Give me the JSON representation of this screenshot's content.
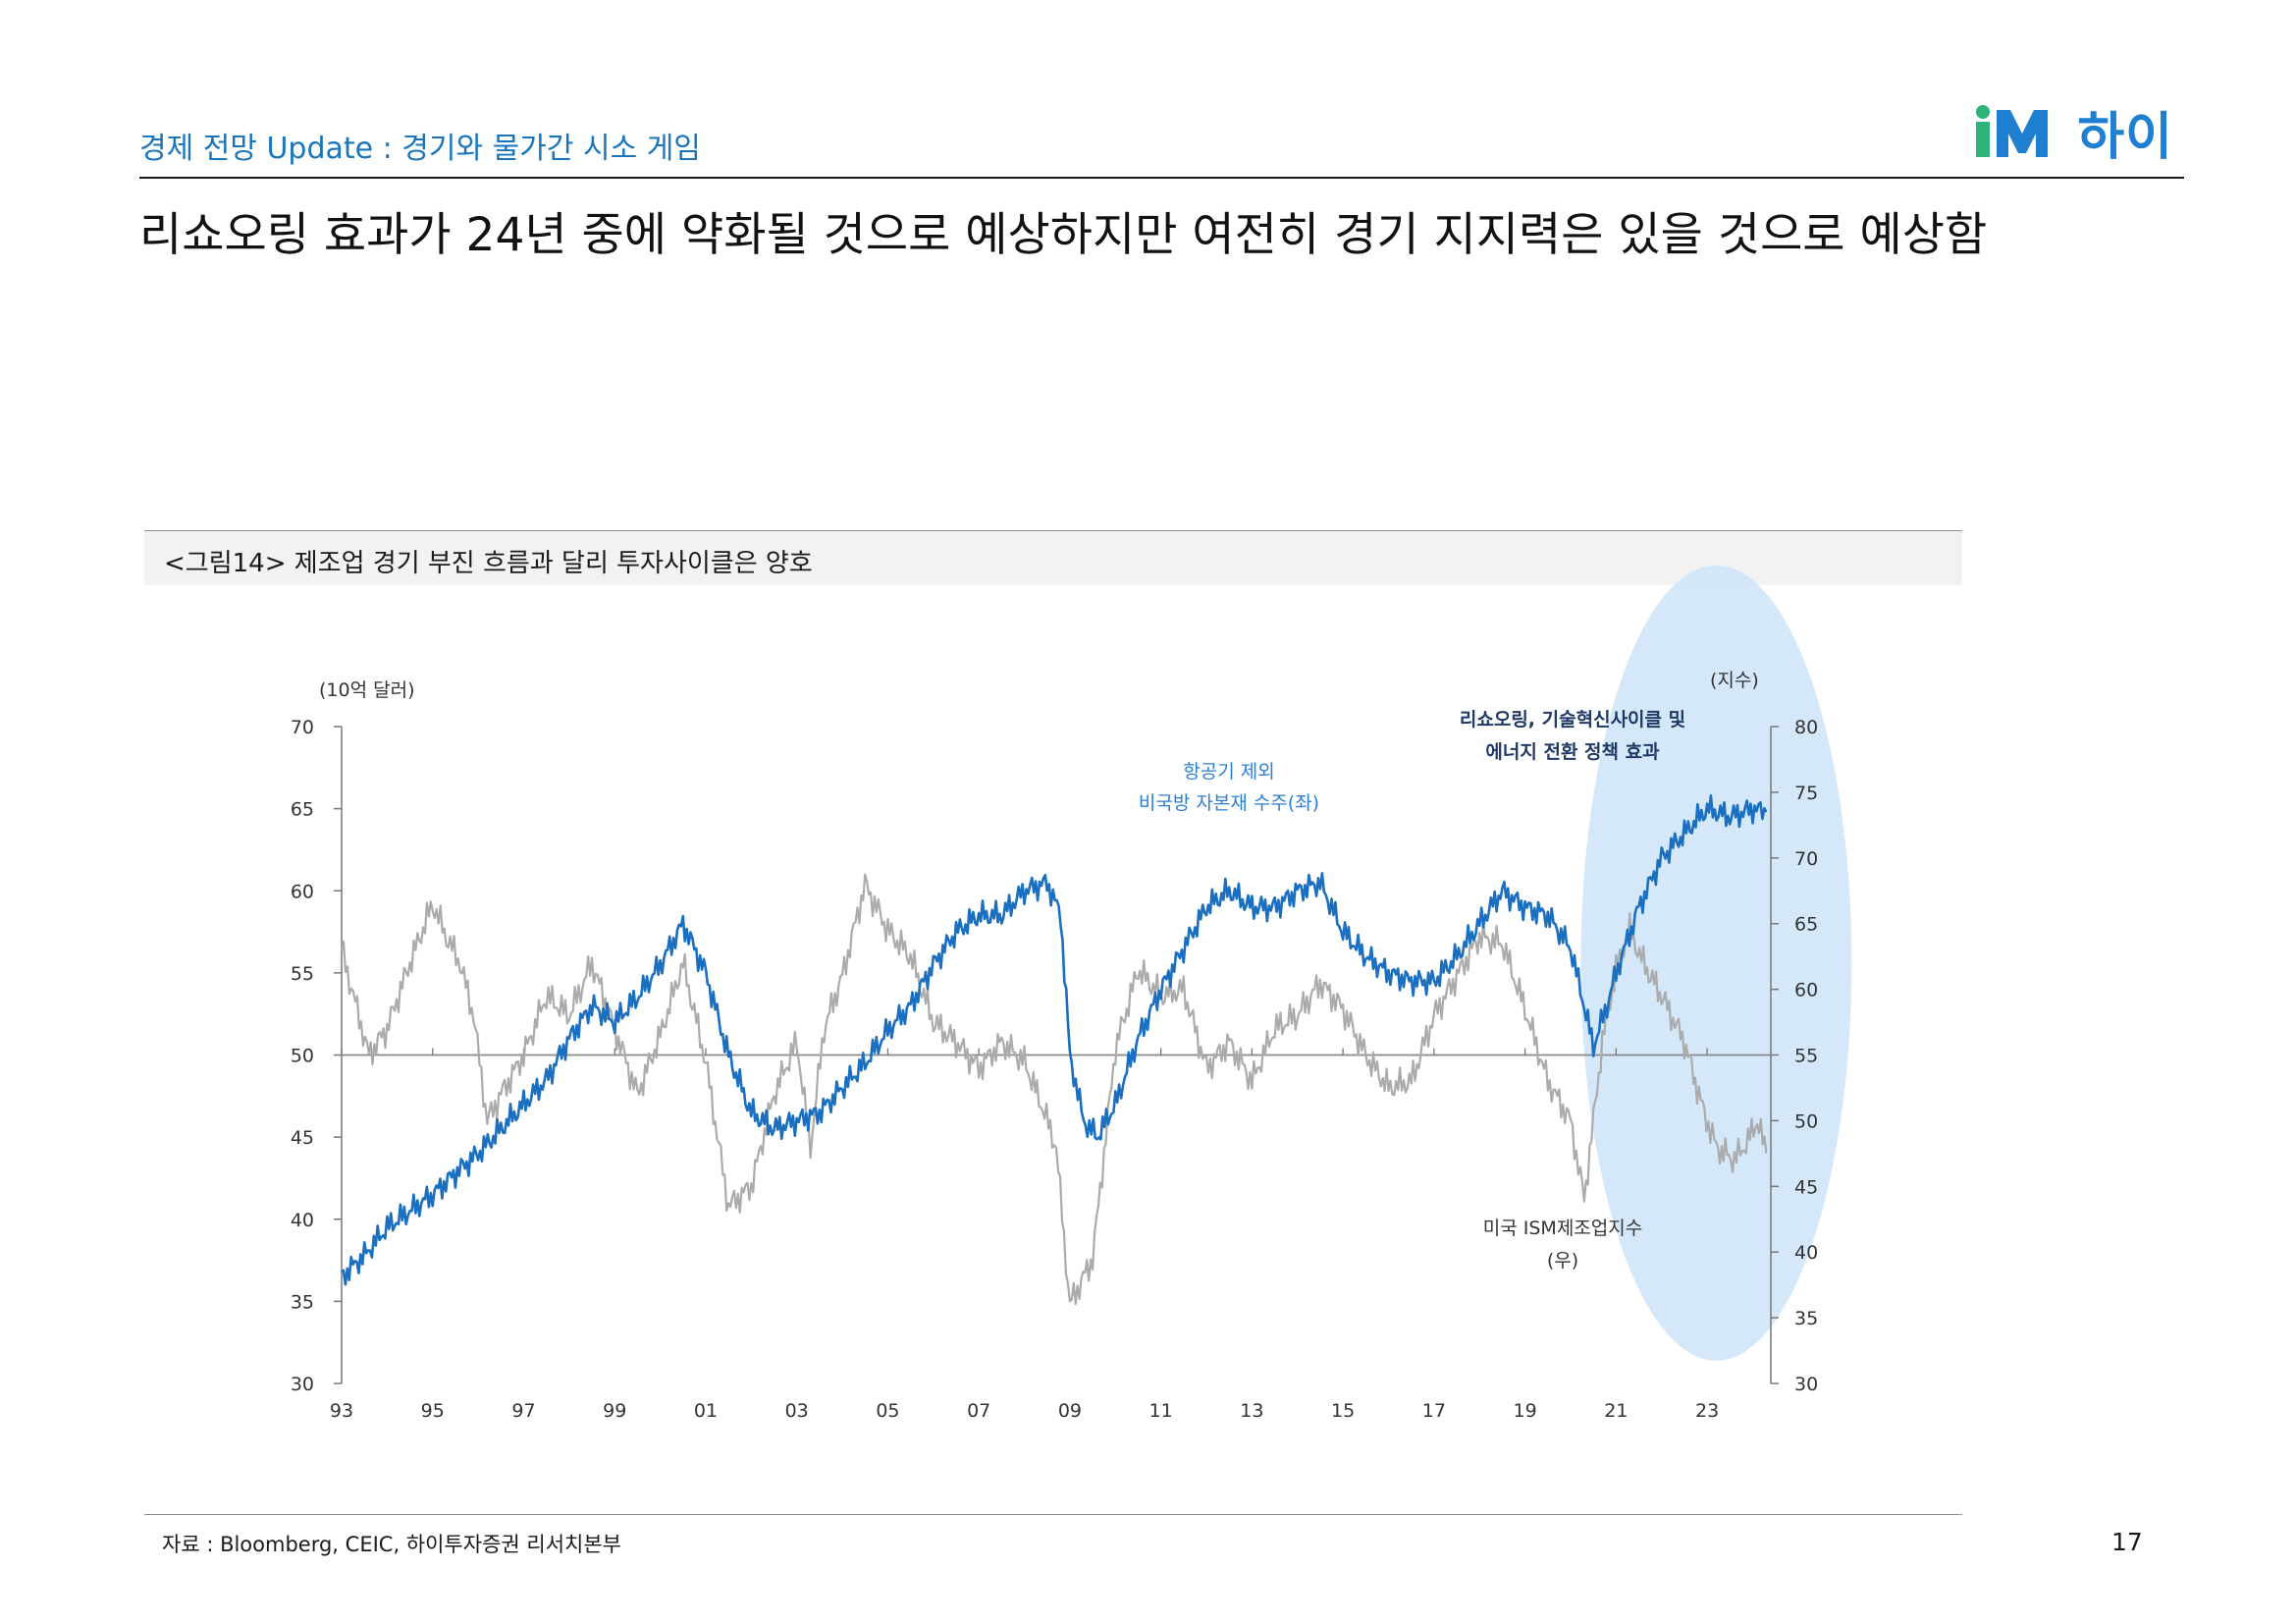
{
  "header": {
    "subtitle": "경제 전망 Update : 경기와 물가간 시소 게임",
    "headline": "리쇼오링 효과가 24년 중에 약화될 것으로 예상하지만 여전히 경기 지지력은 있을 것으로 예상함",
    "logo_text": "하이",
    "logo_brand": "iM"
  },
  "figure": {
    "caption": "<그림14> 제조업 경기 부진 흐름과 달리 투자사이클은 양호",
    "source": "자료 : Bloomberg, CEIC, 하이투자증권 리서치본부"
  },
  "page_number": "17",
  "colors": {
    "blue_series": "#1a6fc0",
    "gray_series": "#ababab",
    "highlight": "#cfe6fa",
    "annotation_dark": "#1f3a66",
    "annotation_blue": "#2f7fcf"
  },
  "chart_data": {
    "type": "line",
    "x_tick_labels": [
      "93",
      "95",
      "97",
      "99",
      "01",
      "03",
      "05",
      "07",
      "09",
      "11",
      "13",
      "15",
      "17",
      "19",
      "21",
      "23"
    ],
    "x_range": [
      1993.0,
      2024.4
    ],
    "left_axis": {
      "unit_label": "(10억 달러)",
      "ylim": [
        30,
        70
      ],
      "ticks": [
        30,
        35,
        40,
        45,
        50,
        55,
        60,
        65,
        70
      ]
    },
    "right_axis": {
      "unit_label": "(지수)",
      "ylim": [
        30,
        80
      ],
      "ticks": [
        30,
        35,
        40,
        45,
        50,
        55,
        60,
        65,
        70,
        75,
        80
      ]
    },
    "reference_line": {
      "axis": "right",
      "value": 55
    },
    "annotations": {
      "blue": [
        "항공기 제외",
        "비국방 자본재 수주(좌)"
      ],
      "gray": [
        "미국 ISM제조업지수",
        "(우)"
      ],
      "highlight": [
        "리쇼오링, 기술혁신사이클 및",
        "에너지 전환 정책 효과"
      ]
    },
    "series": [
      {
        "name": "항공기 제외 비국방 자본재 수주(좌)",
        "axis": "left",
        "color": "#1a6fc0",
        "points": [
          [
            1993.0,
            36.5
          ],
          [
            1993.5,
            37.8
          ],
          [
            1994.0,
            39.5
          ],
          [
            1994.5,
            40.5
          ],
          [
            1995.0,
            41.5
          ],
          [
            1995.5,
            42.8
          ],
          [
            1996.0,
            44.0
          ],
          [
            1996.5,
            45.5
          ],
          [
            1997.0,
            47.0
          ],
          [
            1997.5,
            48.5
          ],
          [
            1998.0,
            51.0
          ],
          [
            1998.5,
            53.0
          ],
          [
            1999.0,
            52.0
          ],
          [
            1999.5,
            53.5
          ],
          [
            2000.0,
            55.5
          ],
          [
            2000.5,
            58.0
          ],
          [
            2001.0,
            55.0
          ],
          [
            2001.5,
            50.0
          ],
          [
            2002.0,
            46.5
          ],
          [
            2002.5,
            45.5
          ],
          [
            2003.0,
            46.0
          ],
          [
            2003.5,
            46.5
          ],
          [
            2004.0,
            48.0
          ],
          [
            2004.5,
            49.5
          ],
          [
            2005.0,
            51.5
          ],
          [
            2005.5,
            53.0
          ],
          [
            2006.0,
            55.5
          ],
          [
            2006.5,
            57.5
          ],
          [
            2007.0,
            58.5
          ],
          [
            2007.5,
            58.5
          ],
          [
            2008.0,
            60.0
          ],
          [
            2008.5,
            60.5
          ],
          [
            2008.8,
            58.5
          ],
          [
            2009.0,
            50.0
          ],
          [
            2009.3,
            46.0
          ],
          [
            2009.6,
            45.0
          ],
          [
            2010.0,
            47.0
          ],
          [
            2010.5,
            51.0
          ],
          [
            2011.0,
            54.0
          ],
          [
            2011.5,
            56.5
          ],
          [
            2012.0,
            59.0
          ],
          [
            2012.5,
            60.0
          ],
          [
            2013.0,
            59.0
          ],
          [
            2013.5,
            59.0
          ],
          [
            2014.0,
            60.0
          ],
          [
            2014.5,
            60.5
          ],
          [
            2015.0,
            57.5
          ],
          [
            2015.5,
            56.0
          ],
          [
            2016.0,
            55.0
          ],
          [
            2016.5,
            54.5
          ],
          [
            2017.0,
            54.5
          ],
          [
            2017.5,
            56.0
          ],
          [
            2018.0,
            58.0
          ],
          [
            2018.5,
            60.0
          ],
          [
            2019.0,
            59.0
          ],
          [
            2019.5,
            58.5
          ],
          [
            2020.0,
            56.5
          ],
          [
            2020.3,
            53.0
          ],
          [
            2020.5,
            50.5
          ],
          [
            2020.8,
            53.0
          ],
          [
            2021.0,
            55.0
          ],
          [
            2021.5,
            59.0
          ],
          [
            2022.0,
            62.0
          ],
          [
            2022.5,
            63.5
          ],
          [
            2023.0,
            65.0
          ],
          [
            2023.5,
            64.5
          ],
          [
            2024.0,
            65.0
          ],
          [
            2024.3,
            64.8
          ]
        ]
      },
      {
        "name": "미국 ISM제조업지수 (우)",
        "axis": "right",
        "color": "#ababab",
        "points": [
          [
            1993.0,
            63.0
          ],
          [
            1993.3,
            59.0
          ],
          [
            1993.6,
            55.0
          ],
          [
            1994.0,
            57.0
          ],
          [
            1994.5,
            62.0
          ],
          [
            1995.0,
            66.5
          ],
          [
            1995.3,
            64.0
          ],
          [
            1995.6,
            62.0
          ],
          [
            1995.9,
            58.0
          ],
          [
            1996.2,
            50.0
          ],
          [
            1996.5,
            52.0
          ],
          [
            1997.0,
            55.0
          ],
          [
            1997.5,
            59.5
          ],
          [
            1998.0,
            58.0
          ],
          [
            1998.5,
            62.0
          ],
          [
            1999.0,
            57.0
          ],
          [
            1999.5,
            52.0
          ],
          [
            2000.0,
            56.5
          ],
          [
            2000.5,
            62.0
          ],
          [
            2001.0,
            54.5
          ],
          [
            2001.5,
            43.5
          ],
          [
            2002.0,
            45.0
          ],
          [
            2002.5,
            52.0
          ],
          [
            2003.0,
            56.0
          ],
          [
            2003.3,
            48.0
          ],
          [
            2003.6,
            57.0
          ],
          [
            2004.0,
            61.0
          ],
          [
            2004.5,
            68.0
          ],
          [
            2005.0,
            64.5
          ],
          [
            2005.5,
            62.5
          ],
          [
            2006.0,
            57.5
          ],
          [
            2006.5,
            56.0
          ],
          [
            2007.0,
            54.0
          ],
          [
            2007.5,
            56.0
          ],
          [
            2008.0,
            54.5
          ],
          [
            2008.4,
            51.0
          ],
          [
            2008.7,
            48.0
          ],
          [
            2009.0,
            36.0
          ],
          [
            2009.5,
            39.5
          ],
          [
            2010.0,
            55.5
          ],
          [
            2010.5,
            61.5
          ],
          [
            2011.0,
            59.5
          ],
          [
            2011.5,
            60.0
          ],
          [
            2012.0,
            54.0
          ],
          [
            2012.5,
            56.0
          ],
          [
            2013.0,
            53.0
          ],
          [
            2013.5,
            57.0
          ],
          [
            2014.0,
            58.0
          ],
          [
            2014.5,
            60.5
          ],
          [
            2015.0,
            58.5
          ],
          [
            2015.5,
            55.0
          ],
          [
            2016.0,
            52.5
          ],
          [
            2016.5,
            53.0
          ],
          [
            2017.0,
            58.0
          ],
          [
            2017.5,
            61.0
          ],
          [
            2018.0,
            64.0
          ],
          [
            2018.5,
            63.5
          ],
          [
            2019.0,
            58.5
          ],
          [
            2019.5,
            53.0
          ],
          [
            2020.0,
            50.0
          ],
          [
            2020.3,
            44.0
          ],
          [
            2020.7,
            56.0
          ],
          [
            2021.0,
            61.5
          ],
          [
            2021.3,
            64.5
          ],
          [
            2021.6,
            62.0
          ],
          [
            2022.0,
            59.5
          ],
          [
            2022.5,
            56.0
          ],
          [
            2022.9,
            51.0
          ],
          [
            2023.2,
            48.0
          ],
          [
            2023.6,
            47.0
          ],
          [
            2023.9,
            48.5
          ],
          [
            2024.1,
            50.0
          ],
          [
            2024.3,
            47.5
          ]
        ]
      }
    ]
  }
}
